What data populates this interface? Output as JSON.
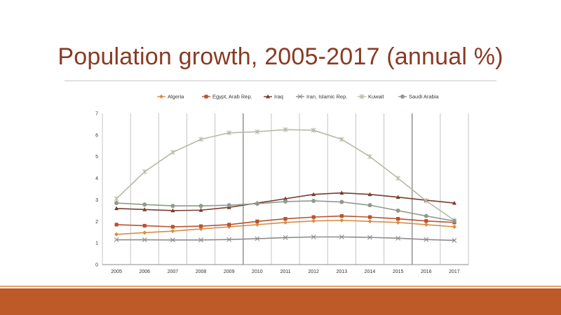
{
  "slide": {
    "title": "Population growth, 2005-2017 (annual %)"
  },
  "chart_data": {
    "type": "line",
    "title": "",
    "xlabel": "",
    "ylabel": "",
    "x": [
      "2005",
      "2006",
      "2007",
      "2008",
      "2009",
      "2010",
      "2011",
      "2012",
      "2013",
      "2014",
      "2015",
      "2016",
      "2017"
    ],
    "ylim": [
      0,
      7
    ],
    "yticks": [
      "0",
      "1",
      "2",
      "3",
      "4",
      "5",
      "6",
      "7"
    ],
    "legend_position": "top",
    "series": [
      {
        "name": "Algeria",
        "color": "#d98c45",
        "marker": "diamond",
        "values": [
          1.4,
          1.48,
          1.55,
          1.65,
          1.75,
          1.85,
          1.95,
          2.02,
          2.05,
          2.0,
          1.95,
          1.85,
          1.75
        ]
      },
      {
        "name": "Egypt, Arab Rep.",
        "color": "#b8522e",
        "marker": "square",
        "values": [
          1.85,
          1.8,
          1.75,
          1.78,
          1.85,
          2.0,
          2.12,
          2.2,
          2.25,
          2.2,
          2.12,
          2.02,
          1.95
        ]
      },
      {
        "name": "Iraq",
        "color": "#7a3b2e",
        "marker": "triangle",
        "values": [
          2.6,
          2.55,
          2.5,
          2.52,
          2.65,
          2.85,
          3.05,
          3.25,
          3.32,
          3.25,
          3.12,
          2.98,
          2.85
        ]
      },
      {
        "name": "Iran, Islamic Rep.",
        "color": "#8c8c8c",
        "marker": "x",
        "values": [
          1.15,
          1.15,
          1.14,
          1.14,
          1.16,
          1.2,
          1.25,
          1.28,
          1.28,
          1.26,
          1.22,
          1.16,
          1.12
        ]
      },
      {
        "name": "Kuwait",
        "color": "#b9b9a7",
        "marker": "star",
        "values": [
          3.05,
          4.3,
          5.2,
          5.8,
          6.1,
          6.15,
          6.25,
          6.22,
          5.8,
          5.0,
          4.0,
          2.95,
          2.05
        ]
      },
      {
        "name": "Saudi Arabia",
        "color": "#8f9a8c",
        "marker": "circle",
        "values": [
          2.85,
          2.78,
          2.72,
          2.72,
          2.75,
          2.82,
          2.92,
          2.95,
          2.9,
          2.75,
          2.5,
          2.25,
          2.02
        ]
      }
    ]
  }
}
